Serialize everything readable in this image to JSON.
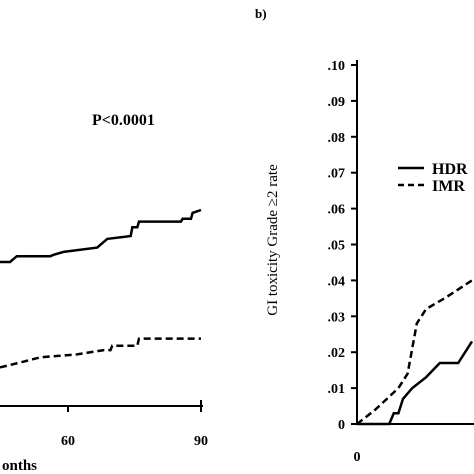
{
  "chart_data": [
    {
      "panel": "a",
      "type": "line",
      "xlabel_visible_fragment": "onths",
      "x_ticks": [
        "60",
        "90"
      ],
      "annotation": "P<0.0001",
      "xlim": [
        30,
        90
      ],
      "series": [
        {
          "style": "solid",
          "x": [
            30,
            33,
            34,
            35,
            45,
            46,
            49,
            59,
            60,
            61,
            62,
            69,
            69.5,
            71,
            71.5,
            84,
            84.5,
            87,
            87.5,
            90
          ],
          "y": [
            0.0455,
            0.0455,
            0.0465,
            0.0475,
            0.0475,
            0.048,
            0.049,
            0.0505,
            0.0515,
            0.0525,
            0.0535,
            0.0545,
            0.0575,
            0.0575,
            0.0595,
            0.0595,
            0.0605,
            0.0605,
            0.0625,
            0.0635
          ]
        },
        {
          "style": "dashed",
          "x": [
            30,
            37,
            42,
            53,
            61,
            63,
            63.5,
            71,
            71.5,
            74,
            90
          ],
          "y": [
            0.009,
            0.011,
            0.0125,
            0.0135,
            0.015,
            0.015,
            0.0165,
            0.0165,
            0.019,
            0.019,
            0.019
          ]
        }
      ]
    },
    {
      "panel": "b",
      "panel_label": "b)",
      "type": "line",
      "ylabel": "GI toxicity Grade ≥2  rate",
      "y_ticks": [
        ".10",
        ".09",
        ".08",
        ".07",
        ".06",
        ".05",
        ".04",
        ".03",
        ".02",
        ".01",
        "0"
      ],
      "x_ticks": [
        "0"
      ],
      "ylim": [
        0,
        0.1
      ],
      "legend": [
        "HDR",
        "IMR"
      ],
      "legend_position": "upper-right",
      "series": [
        {
          "name": "HDR",
          "style": "solid",
          "x": [
            0,
            7,
            8,
            9,
            10,
            12,
            15,
            18,
            22,
            25
          ],
          "y": [
            0,
            0,
            0.003,
            0.003,
            0.007,
            0.01,
            0.013,
            0.017,
            0.017,
            0.023
          ]
        },
        {
          "name": "IMR",
          "style": "dashed",
          "x": [
            0,
            4,
            9,
            11,
            13,
            15,
            19,
            25
          ],
          "y": [
            0,
            0.004,
            0.01,
            0.014,
            0.028,
            0.032,
            0.035,
            0.04
          ]
        }
      ]
    }
  ]
}
